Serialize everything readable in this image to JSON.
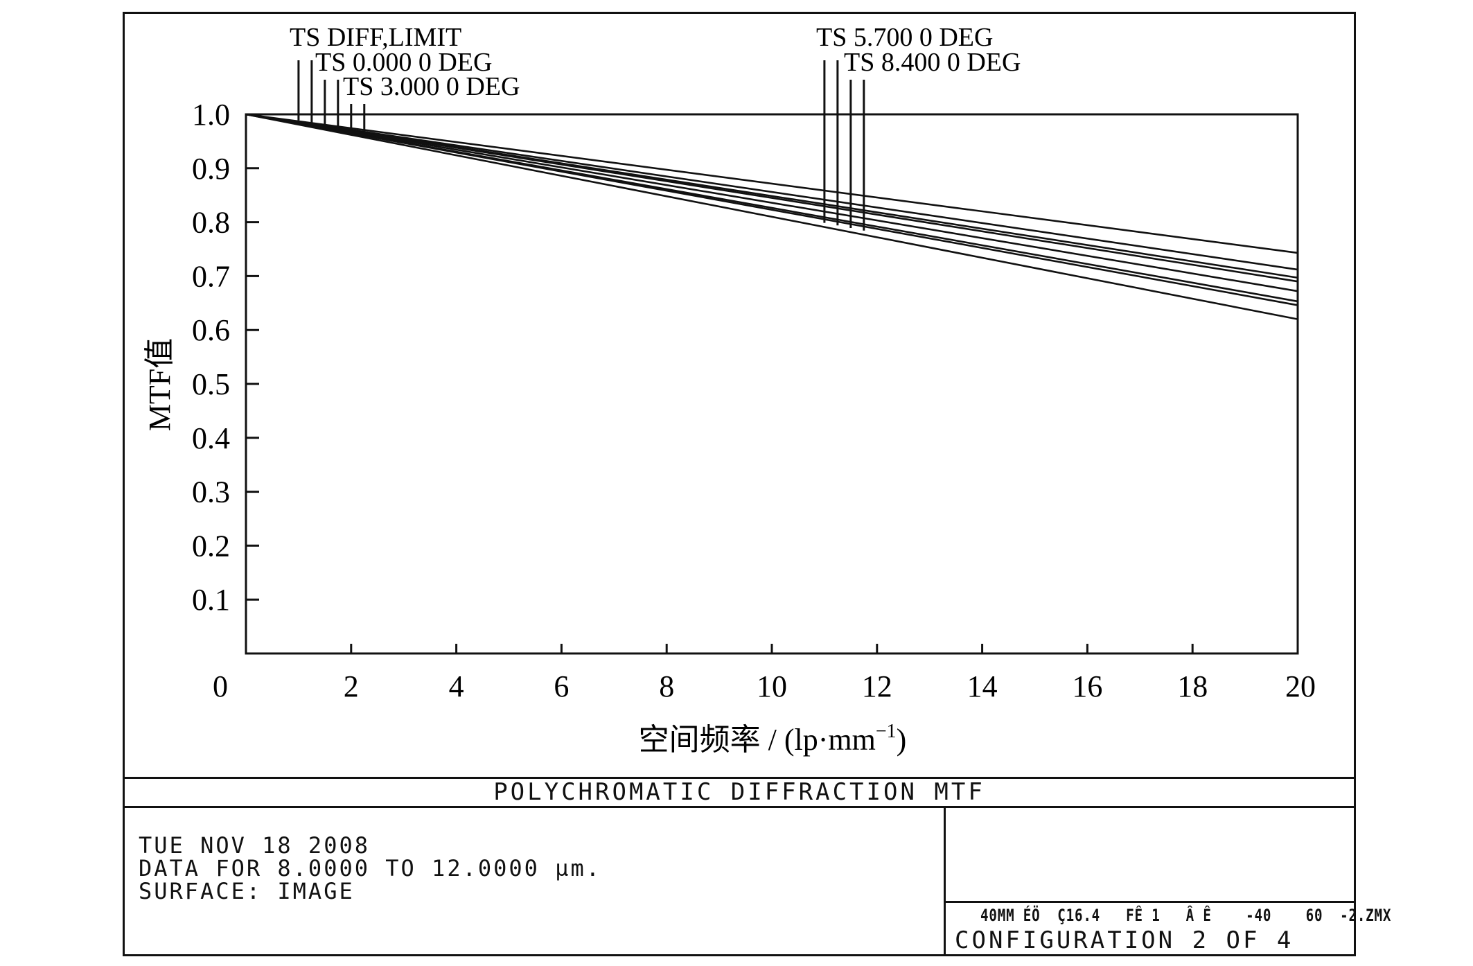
{
  "chart_data": {
    "type": "line",
    "title": "",
    "xlabel": "空间频率 / (lp·mm",
    "xlabel_sup": "−1",
    "xlabel_end": ")",
    "ylabel": "MTF值",
    "xlim": [
      0,
      20
    ],
    "ylim": [
      0,
      1.0
    ],
    "xticks": [
      0,
      2,
      4,
      6,
      8,
      10,
      12,
      14,
      16,
      18,
      20
    ],
    "yticks": [
      0.1,
      0.2,
      0.3,
      0.4,
      0.5,
      0.6,
      0.7,
      0.8,
      0.9,
      1.0
    ],
    "grid": false,
    "legend_labels": [
      {
        "text": "TS DIFF,LIMIT"
      },
      {
        "text": "TS 0.000 0 DEG"
      },
      {
        "text": "TS 3.000 0 DEG"
      },
      {
        "text": "TS 5.700 0 DEG"
      },
      {
        "text": "TS 8.400 0 DEG"
      }
    ],
    "series": [
      {
        "x": [
          0,
          20
        ],
        "y": [
          1.0,
          0.743
        ]
      },
      {
        "x": [
          0,
          20
        ],
        "y": [
          1.0,
          0.712
        ]
      },
      {
        "x": [
          0,
          20
        ],
        "y": [
          1.0,
          0.697
        ]
      },
      {
        "x": [
          0,
          20
        ],
        "y": [
          1.0,
          0.69
        ]
      },
      {
        "x": [
          0,
          20
        ],
        "y": [
          1.0,
          0.672
        ]
      },
      {
        "x": [
          0,
          20
        ],
        "y": [
          1.0,
          0.653
        ]
      },
      {
        "x": [
          0,
          20
        ],
        "y": [
          1.0,
          0.646
        ]
      },
      {
        "x": [
          0,
          20
        ],
        "y": [
          1.0,
          0.62
        ]
      }
    ]
  },
  "footer": {
    "title": "POLYCHROMATIC DIFFRACTION MTF",
    "date": "TUE NOV 18 2008",
    "data_range": "DATA FOR 8.0000 TO 12.0000 µm.",
    "surface": "SURFACE: IMAGE",
    "settings_text": "40MM ÉÖ  Ç16.4   FÊ 1   Â Ê    -40    60  -2.ZMX",
    "configuration": "CONFIGURATION 2 OF 4"
  },
  "colors": {
    "line": "#111111",
    "background": "#ffffff"
  }
}
